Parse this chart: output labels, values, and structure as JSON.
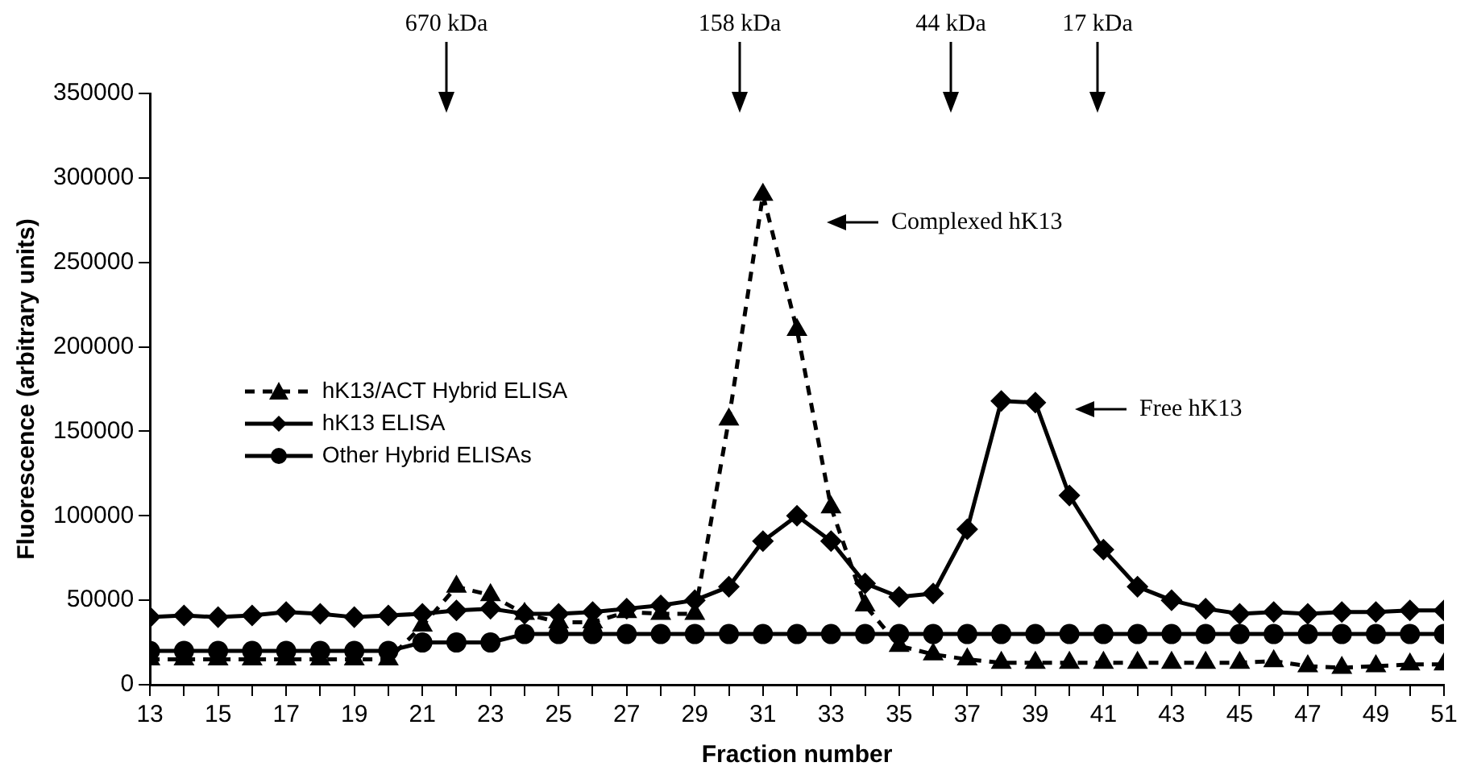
{
  "chart_data": {
    "type": "line",
    "xlabel": "Fraction number",
    "ylabel": "Fluorescence (arbitrary units)",
    "x": [
      13,
      14,
      15,
      16,
      17,
      18,
      19,
      20,
      21,
      22,
      23,
      24,
      25,
      26,
      27,
      28,
      29,
      30,
      31,
      32,
      33,
      34,
      35,
      36,
      37,
      38,
      39,
      40,
      41,
      42,
      43,
      44,
      45,
      46,
      47,
      48,
      49,
      50,
      51
    ],
    "series": [
      {
        "name": "hK13/ACT Hybrid ELISA",
        "color": "#000000",
        "marker": "triangle",
        "line_style": "dashed",
        "values": [
          15000,
          15000,
          15000,
          15000,
          15000,
          15000,
          15000,
          15000,
          35000,
          58000,
          53000,
          42000,
          37000,
          37000,
          43000,
          42000,
          42000,
          157000,
          290000,
          210000,
          105000,
          47000,
          23000,
          18000,
          15000,
          13000,
          13000,
          13000,
          13000,
          13000,
          13000,
          13000,
          13000,
          14000,
          11000,
          10000,
          11000,
          12000,
          12000
        ]
      },
      {
        "name": "hK13 ELISA",
        "color": "#000000",
        "marker": "diamond",
        "line_style": "solid",
        "values": [
          40000,
          41000,
          40000,
          41000,
          43000,
          42000,
          40000,
          41000,
          42000,
          44000,
          45000,
          42000,
          42000,
          43000,
          45000,
          47000,
          50000,
          58000,
          85000,
          100000,
          85000,
          60000,
          52000,
          54000,
          92000,
          168000,
          167000,
          112000,
          80000,
          58000,
          50000,
          45000,
          42000,
          43000,
          42000,
          43000,
          43000,
          44000,
          44000
        ]
      },
      {
        "name": "Other Hybrid ELISAs",
        "color": "#000000",
        "marker": "circle",
        "line_style": "solid",
        "values": [
          20000,
          20000,
          20000,
          20000,
          20000,
          20000,
          20000,
          20000,
          25000,
          25000,
          25000,
          30000,
          30000,
          30000,
          30000,
          30000,
          30000,
          30000,
          30000,
          30000,
          30000,
          30000,
          30000,
          30000,
          30000,
          30000,
          30000,
          30000,
          30000,
          30000,
          30000,
          30000,
          30000,
          30000,
          30000,
          30000,
          30000,
          30000,
          30000
        ]
      }
    ],
    "xlim": [
      13,
      51
    ],
    "xticks": [
      13,
      {
        "value": 14,
        "label": null
      },
      15,
      {
        "value": 16,
        "label": null
      },
      17,
      {
        "value": 18,
        "label": null
      },
      19,
      {
        "value": 20,
        "label": null
      },
      21,
      {
        "value": 22,
        "label": null
      },
      23,
      {
        "value": 24,
        "label": null
      },
      25,
      {
        "value": 26,
        "label": null
      },
      27,
      {
        "value": 28,
        "label": null
      },
      29,
      {
        "value": 30,
        "label": null
      },
      31,
      {
        "value": 32,
        "label": null
      },
      33,
      {
        "value": 34,
        "label": null
      },
      35,
      {
        "value": 36,
        "label": null
      },
      37,
      {
        "value": 38,
        "label": null
      },
      39,
      {
        "value": 40,
        "label": null
      },
      41,
      {
        "value": 42,
        "label": null
      },
      43,
      {
        "value": 44,
        "label": null
      },
      45,
      {
        "value": 46,
        "label": null
      },
      47,
      {
        "value": 48,
        "label": null
      },
      49,
      {
        "value": 50,
        "label": null
      },
      51
    ],
    "ylim": [
      0,
      350000
    ],
    "yticks": [
      0,
      50000,
      100000,
      150000,
      200000,
      250000,
      300000,
      350000
    ],
    "grid": false,
    "legend": "left",
    "annotations": [
      "670 kDa",
      "158 kDa",
      "44 kDa",
      "17 kDa",
      "Complexed hK13",
      "Free hK13"
    ]
  }
}
